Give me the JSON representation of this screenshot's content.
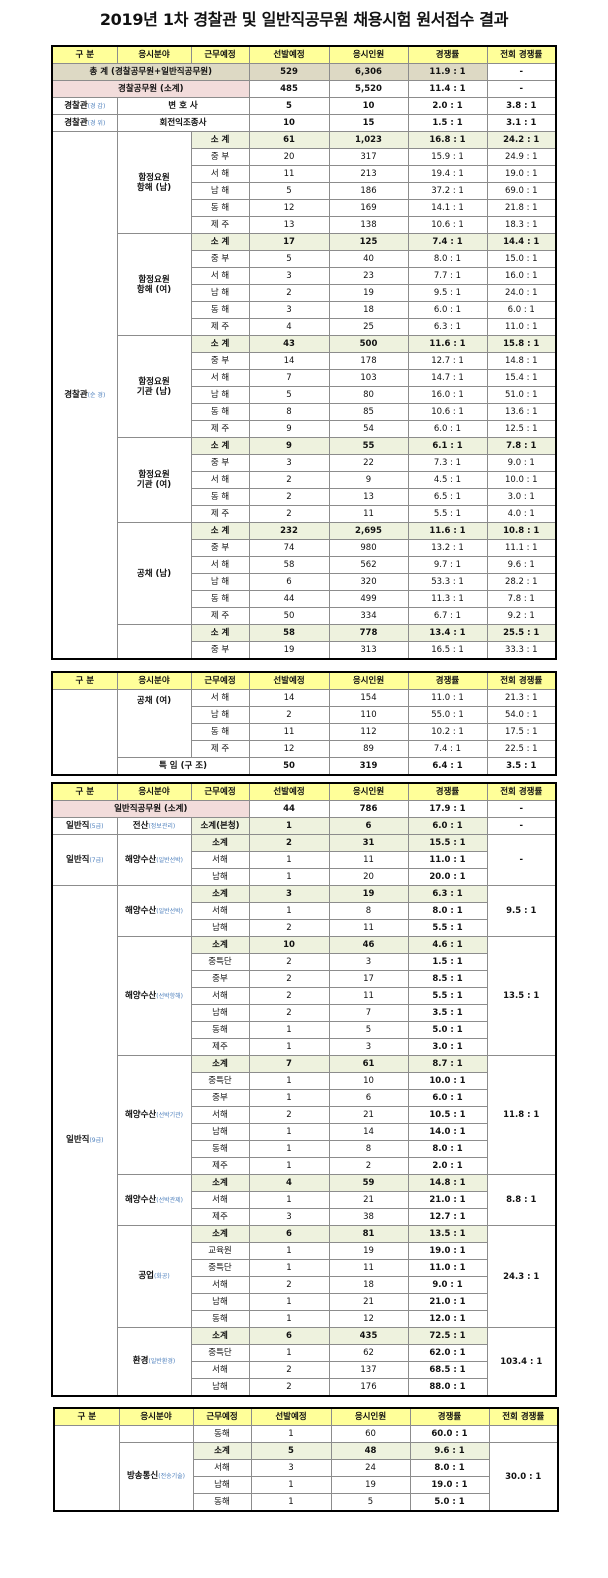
{
  "title": "2019년 1차 경찰관 및 일반직공무원 채용시험 원서접수 결과",
  "header": [
    "구 분",
    "응시분야",
    "근무예정",
    "선발예정",
    "응시인원",
    "경쟁률",
    "전회 경쟁률"
  ],
  "colors": {
    "header": "#ffff99",
    "subtotal": "#eef2de",
    "total": "#ddd9c4",
    "pink": "#f2dcdb",
    "grade_note": "#4f81bd"
  },
  "tables": [
    {
      "rows": [
        {
          "c": "b",
          "cells": [
            {
              "t": "총 계 (경찰공무원+일반직공무원)",
              "cs": 3,
              "c": "tan"
            },
            {
              "t": "529",
              "c": "tan"
            },
            {
              "t": "6,306",
              "c": "tan"
            },
            {
              "t": "11.9 : 1",
              "c": "tan"
            },
            "-"
          ]
        },
        {
          "c": "b",
          "cells": [
            {
              "t": "경찰공무원 (소계)",
              "cs": 3,
              "c": "pink"
            },
            "485",
            "5,520",
            "11.4 : 1",
            "-"
          ]
        },
        {
          "c": "b",
          "cells": [
            {
              "t": "경찰관",
              "sub": "(경 감)"
            },
            {
              "t": "변 호 사",
              "cs": 2
            },
            "5",
            "10",
            "2.0 : 1",
            "3.8 : 1"
          ]
        },
        {
          "c": "b",
          "cells": [
            {
              "t": "경찰관",
              "sub": "(경 위)"
            },
            {
              "t": "회전익조종사",
              "cs": 2
            },
            "10",
            "15",
            "1.5 : 1",
            "3.1 : 1"
          ]
        },
        {
          "c": "s",
          "cells": [
            {
              "t": "경찰관",
              "sub": "(순 경)",
              "rs": 31,
              "c": "w"
            },
            {
              "t": "함정요원\n항해 (남)",
              "rs": 6,
              "c": "w"
            },
            "소 계",
            "61",
            "1,023",
            "16.8 : 1",
            "24.2 : 1"
          ]
        },
        {
          "cells": [
            "중 부",
            "20",
            "317",
            "15.9 : 1",
            "24.9 : 1"
          ]
        },
        {
          "cells": [
            "서 해",
            "11",
            "213",
            "19.4 : 1",
            "19.0 : 1"
          ]
        },
        {
          "cells": [
            "남 해",
            "5",
            "186",
            "37.2 : 1",
            "69.0 : 1"
          ]
        },
        {
          "cells": [
            "동 해",
            "12",
            "169",
            "14.1 : 1",
            "21.8 : 1"
          ]
        },
        {
          "cells": [
            "제 주",
            "13",
            "138",
            "10.6 : 1",
            "18.3 : 1"
          ]
        },
        {
          "c": "s",
          "cells": [
            {
              "t": "함정요원\n항해 (여)",
              "rs": 6,
              "c": "w"
            },
            "소 계",
            "17",
            "125",
            "7.4 : 1",
            "14.4 : 1"
          ]
        },
        {
          "cells": [
            "중 부",
            "5",
            "40",
            "8.0 : 1",
            "15.0 : 1"
          ]
        },
        {
          "cells": [
            "서 해",
            "3",
            "23",
            "7.7 : 1",
            "16.0 : 1"
          ]
        },
        {
          "cells": [
            "남 해",
            "2",
            "19",
            "9.5 : 1",
            "24.0 : 1"
          ]
        },
        {
          "cells": [
            "동 해",
            "3",
            "18",
            "6.0 : 1",
            "6.0 : 1"
          ]
        },
        {
          "cells": [
            "제 주",
            "4",
            "25",
            "6.3 : 1",
            "11.0 : 1"
          ]
        },
        {
          "c": "s",
          "cells": [
            {
              "t": "함정요원\n기관 (남)",
              "rs": 6,
              "c": "w"
            },
            "소 계",
            "43",
            "500",
            "11.6 : 1",
            "15.8 : 1"
          ]
        },
        {
          "cells": [
            "중 부",
            "14",
            "178",
            "12.7 : 1",
            "14.8 : 1"
          ]
        },
        {
          "cells": [
            "서 해",
            "7",
            "103",
            "14.7 : 1",
            "15.4 : 1"
          ]
        },
        {
          "cells": [
            "남 해",
            "5",
            "80",
            "16.0 : 1",
            "51.0 : 1"
          ]
        },
        {
          "cells": [
            "동 해",
            "8",
            "85",
            "10.6 : 1",
            "13.6 : 1"
          ]
        },
        {
          "cells": [
            "제 주",
            "9",
            "54",
            "6.0 : 1",
            "12.5 : 1"
          ]
        },
        {
          "c": "s",
          "cells": [
            {
              "t": "함정요원\n기관 (여)",
              "rs": 5,
              "c": "w"
            },
            "소 계",
            "9",
            "55",
            "6.1 : 1",
            "7.8 : 1"
          ]
        },
        {
          "cells": [
            "중 부",
            "3",
            "22",
            "7.3 : 1",
            "9.0 : 1"
          ]
        },
        {
          "cells": [
            "서 해",
            "2",
            "9",
            "4.5 : 1",
            "10.0 : 1"
          ]
        },
        {
          "cells": [
            "동 해",
            "2",
            "13",
            "6.5 : 1",
            "3.0 : 1"
          ]
        },
        {
          "cells": [
            "제 주",
            "2",
            "11",
            "5.5 : 1",
            "4.0 : 1"
          ]
        },
        {
          "c": "s",
          "cells": [
            {
              "t": "공채 (남)",
              "rs": 6,
              "c": "w"
            },
            "소 계",
            "232",
            "2,695",
            "11.6 : 1",
            "10.8 : 1"
          ]
        },
        {
          "cells": [
            "중 부",
            "74",
            "980",
            "13.2 : 1",
            "11.1 : 1"
          ]
        },
        {
          "cells": [
            "서 해",
            "58",
            "562",
            "9.7 : 1",
            "9.6 : 1"
          ]
        },
        {
          "cells": [
            "남 해",
            "6",
            "320",
            "53.3 : 1",
            "28.2 : 1"
          ]
        },
        {
          "cells": [
            "동 해",
            "44",
            "499",
            "11.3 : 1",
            "7.8 : 1"
          ]
        },
        {
          "cells": [
            "제 주",
            "50",
            "334",
            "6.7 : 1",
            "9.2 : 1"
          ]
        },
        {
          "c": "s",
          "cells": [
            {
              "t": "",
              "rs": 2,
              "c": "w"
            },
            "소 계",
            "58",
            "778",
            "13.4 : 1",
            "25.5 : 1"
          ]
        },
        {
          "cells": [
            "중 부",
            "19",
            "313",
            "16.5 : 1",
            "33.3 : 1"
          ]
        }
      ]
    },
    {
      "rows": [
        {
          "cells": [
            {
              "t": "",
              "rs": 5,
              "c": "w"
            },
            {
              "t": "공채 (여)",
              "rs": 4,
              "c": "w top"
            },
            "서 해",
            "14",
            "154",
            "11.0 : 1",
            "21.3 : 1"
          ]
        },
        {
          "cells": [
            "남 해",
            "2",
            "110",
            "55.0 : 1",
            "54.0 : 1"
          ]
        },
        {
          "cells": [
            "동 해",
            "11",
            "112",
            "10.2 : 1",
            "17.5 : 1"
          ]
        },
        {
          "cells": [
            "제 주",
            "12",
            "89",
            "7.4 : 1",
            "22.5 : 1"
          ]
        },
        {
          "c": "b",
          "cells": [
            {
              "t": "특 임 (구 조)",
              "cs": 2
            },
            "50",
            "319",
            "6.4 : 1",
            "3.5 : 1"
          ]
        }
      ]
    },
    {
      "bold_ratio": true,
      "rows": [
        {
          "c": "b",
          "cells": [
            {
              "t": "일반직공무원 (소계)",
              "cs": 3,
              "c": "pink"
            },
            "44",
            "786",
            "17.9 : 1",
            "-"
          ]
        },
        {
          "c": "s",
          "cells": [
            {
              "t": "일반직",
              "sub": "(5급)",
              "c": "w"
            },
            {
              "t": "전산",
              "sub": "(정보관리)",
              "c": "w"
            },
            "소계(본청)",
            "1",
            "6",
            "6.0 : 1",
            {
              "t": "-",
              "c": "w"
            }
          ]
        },
        {
          "c": "s",
          "cells": [
            {
              "t": "일반직",
              "sub": "(7급)",
              "rs": 3,
              "c": "w"
            },
            {
              "t": "해양수산",
              "sub": "(일반선박)",
              "rs": 3,
              "c": "w"
            },
            "소계",
            "2",
            "31",
            "15.5 : 1",
            {
              "t": "-",
              "rs": 3,
              "c": "w"
            }
          ]
        },
        {
          "cells": [
            "서해",
            "1",
            "11",
            "11.0 : 1"
          ]
        },
        {
          "cells": [
            "남해",
            "1",
            "20",
            "20.0 : 1"
          ]
        },
        {
          "c": "s",
          "cells": [
            {
              "t": "일반직",
              "sub": "(9급)",
              "rs": 30,
              "c": "w"
            },
            {
              "t": "해양수산",
              "sub": "(일반선박)",
              "rs": 3,
              "c": "w"
            },
            "소계",
            "3",
            "19",
            "6.3 : 1",
            {
              "t": "9.5 : 1",
              "rs": 3,
              "c": "w"
            }
          ]
        },
        {
          "cells": [
            "서해",
            "1",
            "8",
            "8.0 : 1"
          ]
        },
        {
          "cells": [
            "남해",
            "2",
            "11",
            "5.5 : 1"
          ]
        },
        {
          "c": "s",
          "cells": [
            {
              "t": "해양수산",
              "sub": "(선박항해)",
              "rs": 7,
              "c": "w"
            },
            "소계",
            "10",
            "46",
            "4.6 : 1",
            {
              "t": "13.5 : 1",
              "rs": 7,
              "c": "w"
            }
          ]
        },
        {
          "cells": [
            "중특단",
            "2",
            "3",
            "1.5 : 1"
          ]
        },
        {
          "cells": [
            "중부",
            "2",
            "17",
            "8.5 : 1"
          ]
        },
        {
          "cells": [
            "서해",
            "2",
            "11",
            "5.5 : 1"
          ]
        },
        {
          "cells": [
            "남해",
            "2",
            "7",
            "3.5 : 1"
          ]
        },
        {
          "cells": [
            "동해",
            "1",
            "5",
            "5.0 : 1"
          ]
        },
        {
          "cells": [
            "제주",
            "1",
            "3",
            "3.0 : 1"
          ]
        },
        {
          "c": "s",
          "cells": [
            {
              "t": "해양수산",
              "sub": "(선박기관)",
              "rs": 7,
              "c": "w"
            },
            "소계",
            "7",
            "61",
            "8.7 : 1",
            {
              "t": "11.8 : 1",
              "rs": 7,
              "c": "w"
            }
          ]
        },
        {
          "cells": [
            "중특단",
            "1",
            "10",
            "10.0 : 1"
          ]
        },
        {
          "cells": [
            "중부",
            "1",
            "6",
            "6.0 : 1"
          ]
        },
        {
          "cells": [
            "서해",
            "2",
            "21",
            "10.5 : 1"
          ]
        },
        {
          "cells": [
            "남해",
            "1",
            "14",
            "14.0 : 1"
          ]
        },
        {
          "cells": [
            "동해",
            "1",
            "8",
            "8.0 : 1"
          ]
        },
        {
          "cells": [
            "제주",
            "1",
            "2",
            "2.0 : 1"
          ]
        },
        {
          "c": "s",
          "cells": [
            {
              "t": "해양수산",
              "sub": "(선박관제)",
              "rs": 3,
              "c": "w"
            },
            "소계",
            "4",
            "59",
            "14.8 : 1",
            {
              "t": "8.8 : 1",
              "rs": 3,
              "c": "w"
            }
          ]
        },
        {
          "cells": [
            "서해",
            "1",
            "21",
            "21.0 : 1"
          ]
        },
        {
          "cells": [
            "제주",
            "3",
            "38",
            "12.7 : 1"
          ]
        },
        {
          "c": "s",
          "cells": [
            {
              "t": "공업",
              "sub": "(화공)",
              "rs": 6,
              "c": "w"
            },
            "소계",
            "6",
            "81",
            "13.5 : 1",
            {
              "t": "24.3 : 1",
              "rs": 6,
              "c": "w"
            }
          ]
        },
        {
          "cells": [
            "교육원",
            "1",
            "19",
            "19.0 : 1"
          ]
        },
        {
          "cells": [
            "중특단",
            "1",
            "11",
            "11.0 : 1"
          ]
        },
        {
          "cells": [
            "서해",
            "2",
            "18",
            "9.0 : 1"
          ]
        },
        {
          "cells": [
            "남해",
            "1",
            "21",
            "21.0 : 1"
          ]
        },
        {
          "cells": [
            "동해",
            "1",
            "12",
            "12.0 : 1"
          ]
        },
        {
          "c": "s",
          "cells": [
            {
              "t": "환경",
              "sub": "(일반환경)",
              "rs": 4,
              "c": "w"
            },
            "소계",
            "6",
            "435",
            "72.5 : 1",
            {
              "t": "103.4 : 1",
              "rs": 4,
              "c": "w"
            }
          ]
        },
        {
          "cells": [
            "중특단",
            "1",
            "62",
            "62.0 : 1"
          ]
        },
        {
          "cells": [
            "서해",
            "2",
            "137",
            "68.5 : 1"
          ]
        },
        {
          "cells": [
            "남해",
            "2",
            "176",
            "88.0 : 1"
          ]
        }
      ]
    },
    {
      "bold_ratio": true,
      "rows": [
        {
          "cells": [
            {
              "t": "",
              "rs": 5,
              "c": "w"
            },
            {
              "t": "",
              "c": "w"
            },
            "동해",
            "1",
            "60",
            "60.0 : 1",
            {
              "t": "",
              "c": "w"
            }
          ]
        },
        {
          "c": "s",
          "cells": [
            {
              "t": "방송통신",
              "sub": "(전송기술)",
              "rs": 4,
              "c": "w"
            },
            "소계",
            "5",
            "48",
            "9.6 : 1",
            {
              "t": "30.0 : 1",
              "rs": 4,
              "c": "w"
            }
          ]
        },
        {
          "cells": [
            "서해",
            "3",
            "24",
            "8.0 : 1"
          ]
        },
        {
          "cells": [
            "남해",
            "1",
            "19",
            "19.0 : 1"
          ]
        },
        {
          "cells": [
            "동해",
            "1",
            "5",
            "5.0 : 1"
          ]
        }
      ]
    }
  ]
}
